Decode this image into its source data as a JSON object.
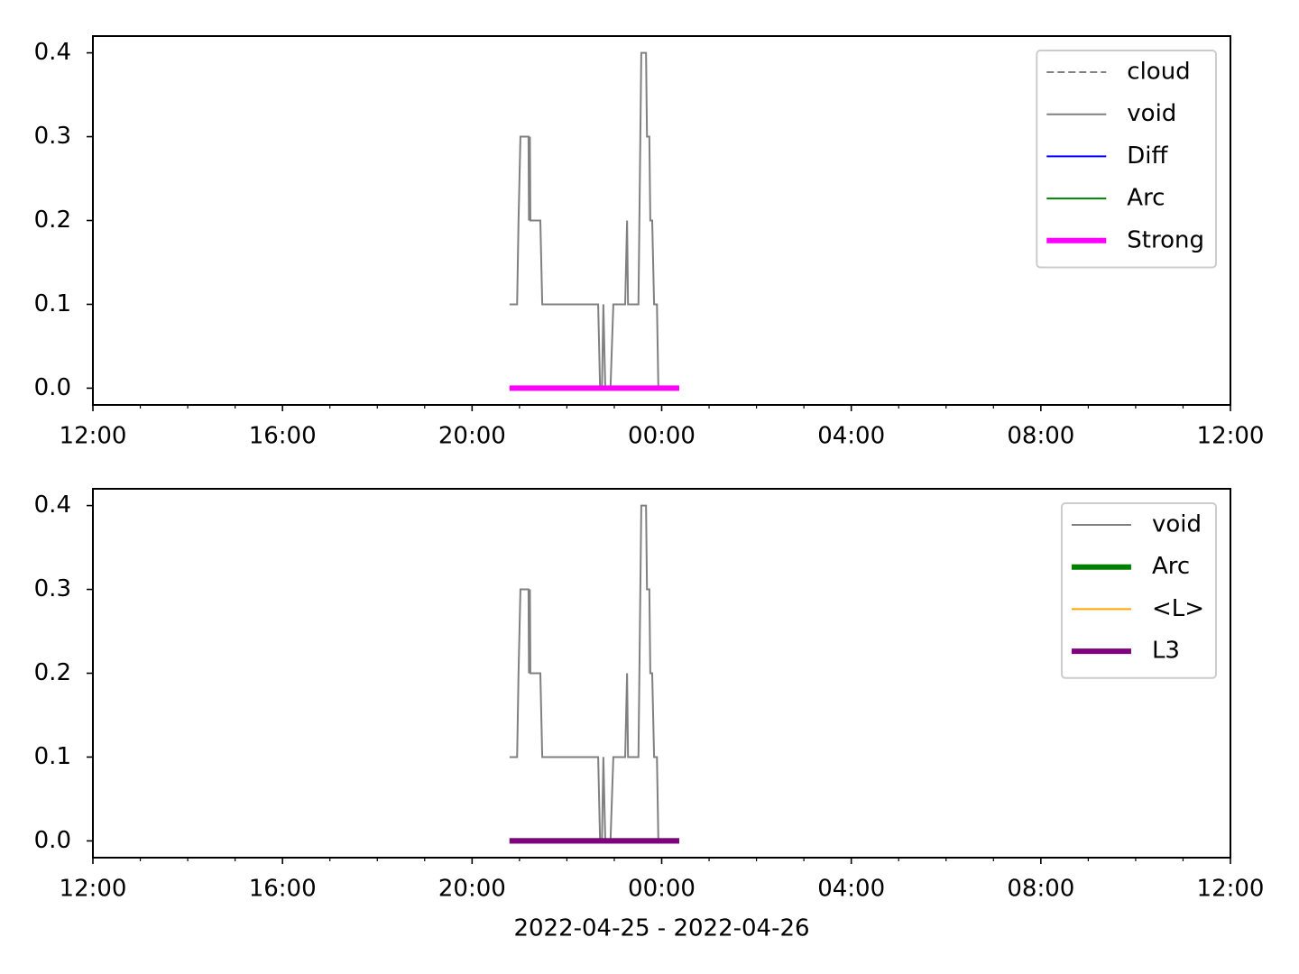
{
  "chart_data": [
    {
      "type": "line",
      "xlim": [
        12,
        36
      ],
      "ylim": [
        -0.02,
        0.42
      ],
      "xticks": [
        {
          "value": 12,
          "label": "12:00"
        },
        {
          "value": 16,
          "label": "16:00"
        },
        {
          "value": 20,
          "label": "20:00"
        },
        {
          "value": 24,
          "label": "00:00"
        },
        {
          "value": 28,
          "label": "04:00"
        },
        {
          "value": 32,
          "label": "08:00"
        },
        {
          "value": 36,
          "label": "12:00"
        }
      ],
      "xminorticks": [
        13,
        14,
        15,
        17,
        18,
        19,
        21,
        22,
        23,
        25,
        26,
        27,
        29,
        30,
        31,
        33,
        34,
        35
      ],
      "yticks": [
        {
          "value": 0,
          "label": "0.0"
        },
        0.1,
        0.2,
        0.3,
        0.4
      ],
      "legend": "upper right",
      "series": [
        {
          "name": "cloud",
          "color": "#808080",
          "linestyle": "dashed",
          "linewidth": 1,
          "x": [
            20.79,
            24.37
          ],
          "values": [
            0,
            0
          ]
        },
        {
          "name": "void",
          "color": "#808080",
          "linestyle": "solid",
          "linewidth": 1,
          "x": [
            20.79,
            20.95,
            20.98,
            21.02,
            21.19,
            21.2,
            21.22,
            21.23,
            21.44,
            21.48,
            22.66,
            22.7,
            22.74,
            22.77,
            22.81,
            22.92,
            22.98,
            23.23,
            23.27,
            23.29,
            23.51,
            23.57,
            23.67,
            23.69,
            23.74,
            23.76,
            23.8,
            23.84,
            23.9,
            23.93
          ],
          "values": [
            0.1,
            0.1,
            0.2,
            0.3,
            0.3,
            0.2,
            0.3,
            0.2,
            0.2,
            0.1,
            0.1,
            0,
            0,
            0.1,
            0,
            0,
            0.1,
            0.1,
            0.2,
            0.1,
            0.1,
            0.4,
            0.4,
            0.3,
            0.3,
            0.2,
            0.2,
            0.1,
            0.1,
            0
          ]
        },
        {
          "name": "Diff",
          "color": "#0000ff",
          "linestyle": "solid",
          "linewidth": 1,
          "x": [
            20.79,
            24.37
          ],
          "values": [
            0,
            0
          ]
        },
        {
          "name": "Arc",
          "color": "#008000",
          "linestyle": "solid",
          "linewidth": 1,
          "x": [
            20.79,
            24.37
          ],
          "values": [
            0,
            0
          ]
        },
        {
          "name": "Strong",
          "color": "#ff00ff",
          "linestyle": "solid",
          "linewidth": 3,
          "x": [
            20.79,
            24.37
          ],
          "values": [
            0,
            0
          ]
        }
      ]
    },
    {
      "type": "line",
      "xlim": [
        12,
        36
      ],
      "ylim": [
        -0.02,
        0.42
      ],
      "xticks": [
        {
          "value": 12,
          "label": "12:00"
        },
        {
          "value": 16,
          "label": "16:00"
        },
        {
          "value": 20,
          "label": "20:00"
        },
        {
          "value": 24,
          "label": "00:00"
        },
        {
          "value": 28,
          "label": "04:00"
        },
        {
          "value": 32,
          "label": "08:00"
        },
        {
          "value": 36,
          "label": "12:00"
        }
      ],
      "xminorticks": [
        13,
        14,
        15,
        17,
        18,
        19,
        21,
        22,
        23,
        25,
        26,
        27,
        29,
        30,
        31,
        33,
        34,
        35
      ],
      "yticks": [
        {
          "value": 0,
          "label": "0.0"
        },
        0.1,
        0.2,
        0.3,
        0.4
      ],
      "xlabel": "2022-04-25 - 2022-04-26",
      "legend": "upper right",
      "series": [
        {
          "name": "void",
          "color": "#808080",
          "linestyle": "solid",
          "linewidth": 1,
          "x": [
            20.79,
            20.95,
            20.98,
            21.02,
            21.19,
            21.2,
            21.22,
            21.23,
            21.44,
            21.48,
            22.66,
            22.7,
            22.74,
            22.77,
            22.81,
            22.92,
            22.98,
            23.23,
            23.27,
            23.29,
            23.51,
            23.57,
            23.67,
            23.69,
            23.74,
            23.76,
            23.8,
            23.84,
            23.9,
            23.93
          ],
          "values": [
            0.1,
            0.1,
            0.2,
            0.3,
            0.3,
            0.2,
            0.3,
            0.2,
            0.2,
            0.1,
            0.1,
            0,
            0,
            0.1,
            0,
            0,
            0.1,
            0.1,
            0.2,
            0.1,
            0.1,
            0.4,
            0.4,
            0.3,
            0.3,
            0.2,
            0.2,
            0.1,
            0.1,
            0
          ]
        },
        {
          "name": "Arc",
          "color": "#008000",
          "linestyle": "solid",
          "linewidth": 3,
          "x": [
            20.79,
            24.37
          ],
          "values": [
            0,
            0
          ]
        },
        {
          "name": "<L>",
          "color": "#ffa500",
          "linestyle": "solid",
          "linewidth": 1,
          "x": [
            20.79,
            24.37
          ],
          "values": [
            0,
            0
          ]
        },
        {
          "name": "L3",
          "color": "#800080",
          "linestyle": "solid",
          "linewidth": 3,
          "x": [
            20.79,
            24.37
          ],
          "values": [
            0,
            0
          ]
        }
      ]
    }
  ]
}
